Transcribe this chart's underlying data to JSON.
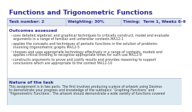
{
  "title": "Functions and Trigonometric Functions",
  "title_color": "#2d2d8f",
  "header_bg": "#dde4f0",
  "header_text_color": "#2d2d8f",
  "body_bg": "#ffffff",
  "border_color": "#b0b8cc",
  "section2_bg": "#ddeaf2",
  "table_row": {
    "col1": "Task number: 2",
    "col2": "Weighting: 30%",
    "col3": "Timing:  Term 1, Weeks 6–9"
  },
  "col_dividers": [
    85,
    165
  ],
  "outcomes_label": "Outcomes assessed",
  "bullets": [
    "uses detailed algebraic and graphical techniques to critically construct, model and evaluate\narguments in a range of familiar and unfamiliar contexts MA12-1",
    "applies the concepts and techniques of periodic functions in the solution of problems\ninvolving trigonometric graphs MA12-5",
    "chooses and uses appropriate technology effectively in a range of contexts, models and\napplies critical thinking to recognise appropriate times for such use MA12-9",
    "constructs arguments to prove and justify results and provides reasoning to support\nconclusions which are appropriate to the context MA12-10"
  ],
  "nature_label": "Nature of the task",
  "nature_text": "This assignment is in two parts. The first involves producing a piece of artwork using Desmos\nto demonstrate your progress and knowledge of the subtopics: ‘Graphing Functions’ and\n‘Trigonometric Functions’. The artwork should demonstrate a wide variety of functions covered"
}
